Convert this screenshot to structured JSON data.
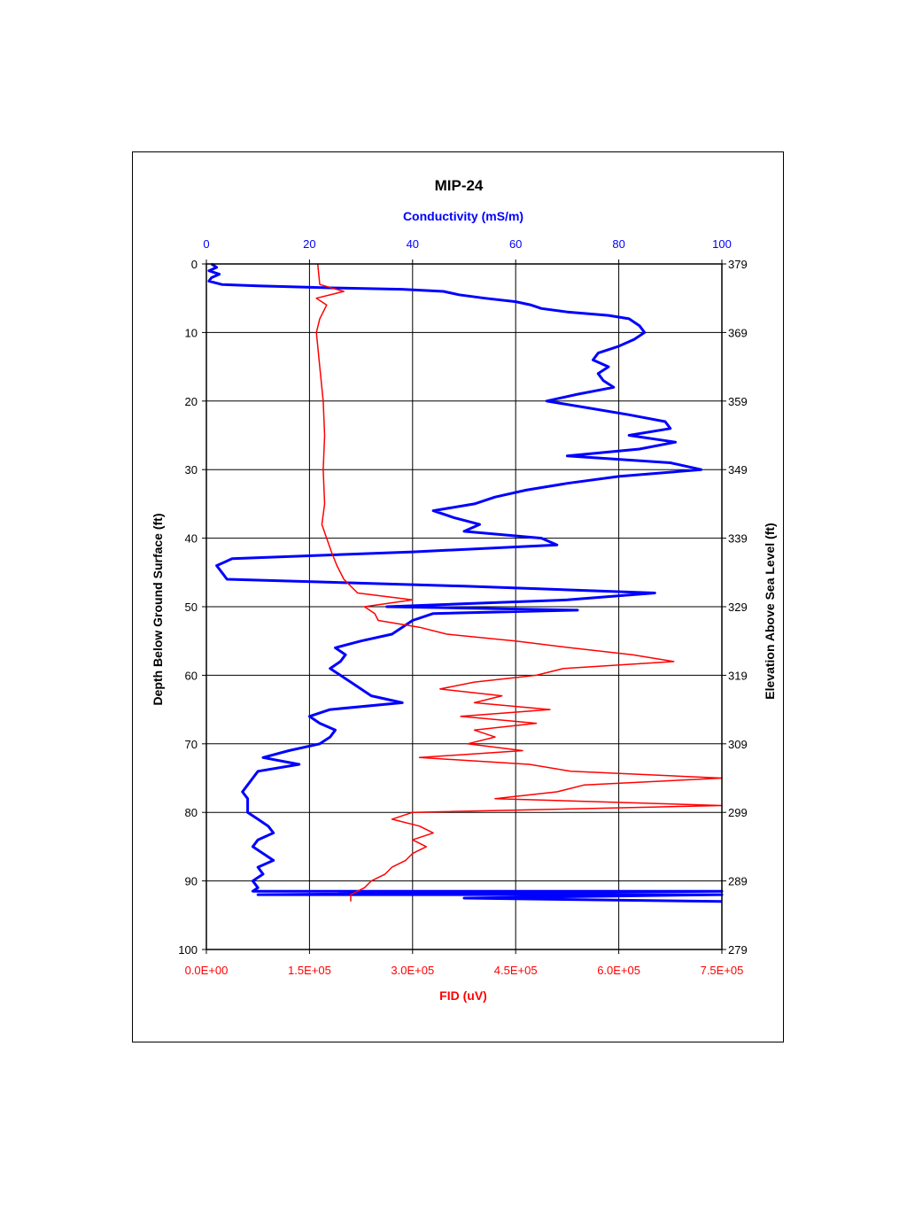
{
  "chart_data": {
    "type": "line",
    "title": "MIP-24",
    "x_top_label": "Conductivity (mS/m)",
    "x_bottom_label": "FID (uV)",
    "y_left_label": "Depth Below Ground Surface (ft)",
    "y_right_label": "Elevation Above Sea Level (ft)",
    "x_top_range": [
      0,
      100
    ],
    "x_top_ticks": [
      "0",
      "20",
      "40",
      "60",
      "80",
      "100"
    ],
    "x_bottom_range": [
      0,
      750000
    ],
    "x_bottom_ticks": [
      "0.0E+00",
      "1.5E+05",
      "3.0E+05",
      "4.5E+05",
      "6.0E+05",
      "7.5E+05"
    ],
    "y_left_range": [
      0,
      100
    ],
    "y_left_ticks": [
      "0",
      "10",
      "20",
      "30",
      "40",
      "50",
      "60",
      "70",
      "80",
      "90",
      "100"
    ],
    "y_right_ticks": [
      "379",
      "369",
      "359",
      "349",
      "339",
      "329",
      "319",
      "309",
      "299",
      "289",
      "279"
    ],
    "grid": true,
    "colors": {
      "conductivity": "#0000ff",
      "fid": "#ff0000",
      "title_top": "#0000ff",
      "title_bottom": "#ff0000"
    },
    "series": [
      {
        "axis": "top",
        "color": "#0000ff",
        "points": [
          [
            1,
            0
          ],
          [
            2,
            0.5
          ],
          [
            0.5,
            1
          ],
          [
            2.5,
            1.5
          ],
          [
            1,
            2
          ],
          [
            0.5,
            2.5
          ],
          [
            3,
            3
          ],
          [
            10,
            3.2
          ],
          [
            25,
            3.5
          ],
          [
            38,
            3.7
          ],
          [
            46,
            4
          ],
          [
            49,
            4.5
          ],
          [
            54,
            5
          ],
          [
            60,
            5.5
          ],
          [
            63,
            6
          ],
          [
            65,
            6.5
          ],
          [
            70,
            7
          ],
          [
            78,
            7.5
          ],
          [
            82,
            8
          ],
          [
            84,
            9
          ],
          [
            85,
            10
          ],
          [
            83,
            11
          ],
          [
            80,
            12
          ],
          [
            76,
            13
          ],
          [
            75,
            14
          ],
          [
            78,
            15
          ],
          [
            76,
            16
          ],
          [
            77,
            17
          ],
          [
            79,
            18
          ],
          [
            72,
            19
          ],
          [
            66,
            20
          ],
          [
            74,
            21
          ],
          [
            82,
            22
          ],
          [
            89,
            23
          ],
          [
            90,
            24
          ],
          [
            82,
            25
          ],
          [
            91,
            26
          ],
          [
            84,
            27
          ],
          [
            70,
            28
          ],
          [
            90,
            29
          ],
          [
            96,
            30
          ],
          [
            80,
            31
          ],
          [
            70,
            32
          ],
          [
            62,
            33
          ],
          [
            56,
            34
          ],
          [
            52,
            35
          ],
          [
            44,
            36
          ],
          [
            48,
            37
          ],
          [
            53,
            38
          ],
          [
            50,
            39
          ],
          [
            65,
            40
          ],
          [
            68,
            41
          ],
          [
            40,
            42
          ],
          [
            5,
            43
          ],
          [
            2,
            44
          ],
          [
            3,
            45
          ],
          [
            4,
            46
          ],
          [
            50,
            47
          ],
          [
            87,
            48
          ],
          [
            70,
            49
          ],
          [
            35,
            50
          ],
          [
            72,
            50.5
          ],
          [
            44,
            51
          ],
          [
            40,
            52
          ],
          [
            38,
            53
          ],
          [
            36,
            54
          ],
          [
            30,
            55
          ],
          [
            25,
            56
          ],
          [
            27,
            57
          ],
          [
            26,
            58
          ],
          [
            24,
            59
          ],
          [
            26,
            60
          ],
          [
            28,
            61
          ],
          [
            30,
            62
          ],
          [
            32,
            63
          ],
          [
            38,
            64
          ],
          [
            24,
            65
          ],
          [
            20,
            66
          ],
          [
            22,
            67
          ],
          [
            25,
            68
          ],
          [
            24,
            69
          ],
          [
            22,
            70
          ],
          [
            16,
            71
          ],
          [
            11,
            72
          ],
          [
            18,
            73
          ],
          [
            10,
            74
          ],
          [
            9,
            75
          ],
          [
            8,
            76
          ],
          [
            7,
            77
          ],
          [
            8,
            78
          ],
          [
            8,
            79
          ],
          [
            8,
            80
          ],
          [
            10,
            81
          ],
          [
            12,
            82
          ],
          [
            13,
            83
          ],
          [
            10,
            84
          ],
          [
            9,
            85
          ],
          [
            11,
            86
          ],
          [
            13,
            87
          ],
          [
            10,
            88
          ],
          [
            11,
            89
          ],
          [
            9,
            90
          ],
          [
            10,
            91
          ],
          [
            9,
            91.5
          ],
          [
            100,
            91.5
          ],
          [
            10,
            92
          ],
          [
            100,
            92
          ],
          [
            50,
            92.5
          ],
          [
            100,
            93
          ]
        ]
      },
      {
        "axis": "bottom",
        "color": "#ff0000",
        "points": [
          [
            162000,
            0
          ],
          [
            165000,
            3
          ],
          [
            200000,
            4
          ],
          [
            160000,
            5
          ],
          [
            175000,
            6
          ],
          [
            165000,
            8
          ],
          [
            160000,
            10
          ],
          [
            165000,
            15
          ],
          [
            170000,
            20
          ],
          [
            172000,
            25
          ],
          [
            170000,
            30
          ],
          [
            172000,
            35
          ],
          [
            168000,
            38
          ],
          [
            175000,
            40
          ],
          [
            182000,
            42
          ],
          [
            190000,
            44
          ],
          [
            200000,
            46
          ],
          [
            220000,
            48
          ],
          [
            300000,
            49
          ],
          [
            230000,
            50
          ],
          [
            245000,
            51
          ],
          [
            250000,
            52
          ],
          [
            310000,
            53
          ],
          [
            350000,
            54
          ],
          [
            450000,
            55
          ],
          [
            530000,
            56
          ],
          [
            620000,
            57
          ],
          [
            680000,
            58
          ],
          [
            520000,
            59
          ],
          [
            480000,
            60
          ],
          [
            390000,
            61
          ],
          [
            340000,
            62
          ],
          [
            430000,
            63
          ],
          [
            390000,
            64
          ],
          [
            500000,
            65
          ],
          [
            370000,
            66
          ],
          [
            480000,
            67
          ],
          [
            390000,
            68
          ],
          [
            420000,
            69
          ],
          [
            380000,
            70
          ],
          [
            460000,
            71
          ],
          [
            310000,
            72
          ],
          [
            470000,
            73
          ],
          [
            530000,
            74
          ],
          [
            750000,
            75
          ],
          [
            550000,
            76
          ],
          [
            510000,
            77
          ],
          [
            420000,
            78
          ],
          [
            750000,
            79
          ],
          [
            300000,
            80
          ],
          [
            270000,
            81
          ],
          [
            310000,
            82
          ],
          [
            330000,
            83
          ],
          [
            300000,
            84
          ],
          [
            320000,
            85
          ],
          [
            300000,
            86
          ],
          [
            290000,
            87
          ],
          [
            270000,
            88
          ],
          [
            260000,
            89
          ],
          [
            240000,
            90
          ],
          [
            230000,
            91
          ],
          [
            210000,
            92
          ],
          [
            210000,
            93
          ]
        ]
      }
    ]
  }
}
